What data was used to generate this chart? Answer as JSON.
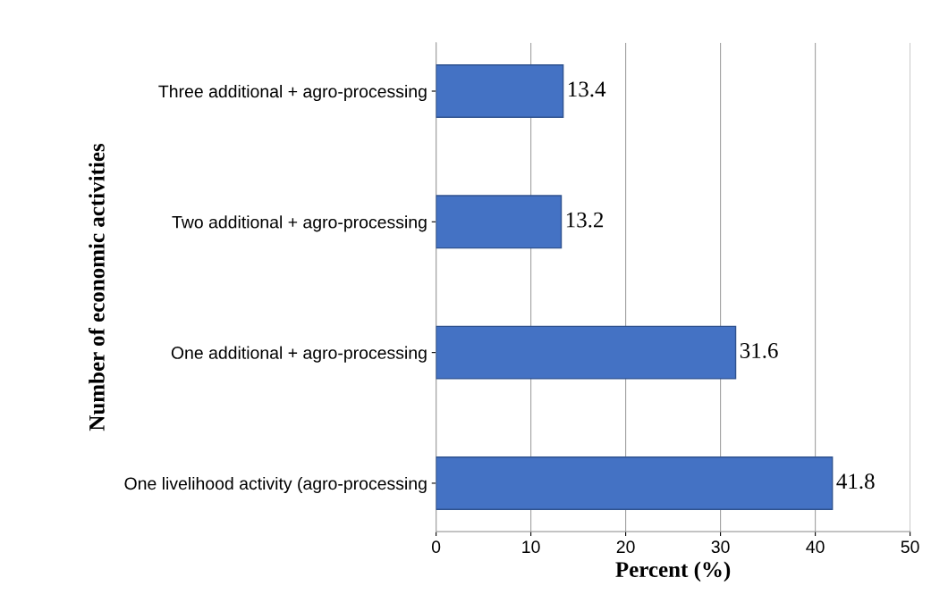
{
  "chart_data": {
    "type": "bar",
    "orientation": "horizontal",
    "xlabel": "Percent (%)",
    "ylabel": "Number of economic activities",
    "categories": [
      "Three additional + agro-processing",
      "Two additional + agro-processing",
      "One additional + agro-processing",
      "One livelihood activity (agro-processing"
    ],
    "values": [
      13.4,
      13.2,
      31.6,
      41.8
    ],
    "color": "#4472c4",
    "xlim": [
      0,
      50
    ],
    "xticks": [
      0,
      10,
      20,
      30,
      40,
      50
    ],
    "grid": "x",
    "data_labels": true
  }
}
